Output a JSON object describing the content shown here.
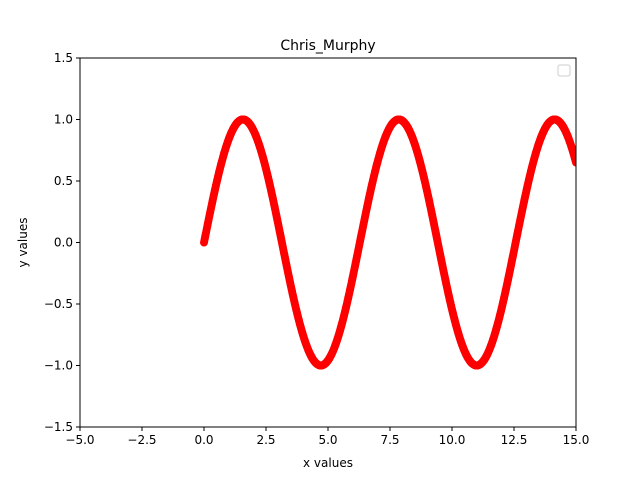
{
  "chart_data": {
    "type": "scatter",
    "title": "Chris_Murphy",
    "xlabel": "x values",
    "ylabel": "y values",
    "xlim": [
      -5.0,
      15.0
    ],
    "ylim": [
      -1.5,
      1.5
    ],
    "grid": false,
    "legend": {
      "placement": "top-right",
      "entries": []
    },
    "x_ticks": [
      "−5.0",
      "−2.5",
      "0.0",
      "2.5",
      "5.0",
      "7.5",
      "10.0",
      "12.5",
      "15.0"
    ],
    "y_ticks": [
      "−1.5",
      "−1.0",
      "−0.5",
      "0.0",
      "0.5",
      "1.0",
      "1.5"
    ],
    "x_tick_values": [
      -5.0,
      -2.5,
      0.0,
      2.5,
      5.0,
      7.5,
      10.0,
      12.5,
      15.0
    ],
    "y_tick_values": [
      -1.5,
      -1.0,
      -0.5,
      0.0,
      0.5,
      1.0,
      1.5
    ],
    "series": [
      {
        "color": "#ff0000",
        "marker": "circle",
        "function": "y = sin(x)",
        "x_range": [
          0.0,
          15.0
        ]
      }
    ]
  }
}
